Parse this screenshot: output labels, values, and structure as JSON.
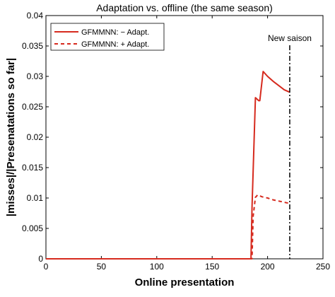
{
  "chart_data": {
    "type": "line",
    "title": "Adaptation vs. offline (the same season)",
    "xlabel": "Online presentation",
    "ylabel": "|misses|/|Presenatations so far|",
    "xlim": [
      0,
      250
    ],
    "ylim": [
      0,
      0.04
    ],
    "xticks": [
      0,
      50,
      100,
      150,
      200,
      250
    ],
    "yticks": [
      0,
      0.005,
      0.01,
      0.015,
      0.02,
      0.025,
      0.03,
      0.035,
      0.04
    ],
    "ytick_labels": [
      "0",
      "0.005",
      "0.01",
      "0.015",
      "0.02",
      "0.025",
      "0.03",
      "0.035",
      "0.04"
    ],
    "legend_position": "top-left",
    "grid": false,
    "series": [
      {
        "name": "GFMMNN: − Adapt.",
        "style": "solid",
        "color": "#d62a1e",
        "points": [
          [
            0,
            0
          ],
          [
            185,
            0
          ],
          [
            186,
            0.0085
          ],
          [
            189,
            0.0265
          ],
          [
            192,
            0.026
          ],
          [
            193,
            0.026
          ],
          [
            196,
            0.0308
          ],
          [
            200,
            0.03
          ],
          [
            205,
            0.0292
          ],
          [
            210,
            0.0285
          ],
          [
            215,
            0.0278
          ],
          [
            220,
            0.0274
          ]
        ]
      },
      {
        "name": "GFMMNN: + Adapt.",
        "style": "dashed",
        "color": "#d62a1e",
        "points": [
          [
            0,
            0
          ],
          [
            184,
            0
          ],
          [
            186,
            0.0
          ],
          [
            187,
            0.007
          ],
          [
            189,
            0.0101
          ],
          [
            191,
            0.0105
          ],
          [
            195,
            0.0102
          ],
          [
            200,
            0.01
          ],
          [
            205,
            0.0097
          ],
          [
            210,
            0.0095
          ],
          [
            215,
            0.0093
          ],
          [
            220,
            0.0091
          ]
        ]
      }
    ],
    "annotations": [
      {
        "type": "vline",
        "x": 220,
        "style": "dash-dot",
        "color": "#000000",
        "label": "New saison"
      }
    ]
  }
}
